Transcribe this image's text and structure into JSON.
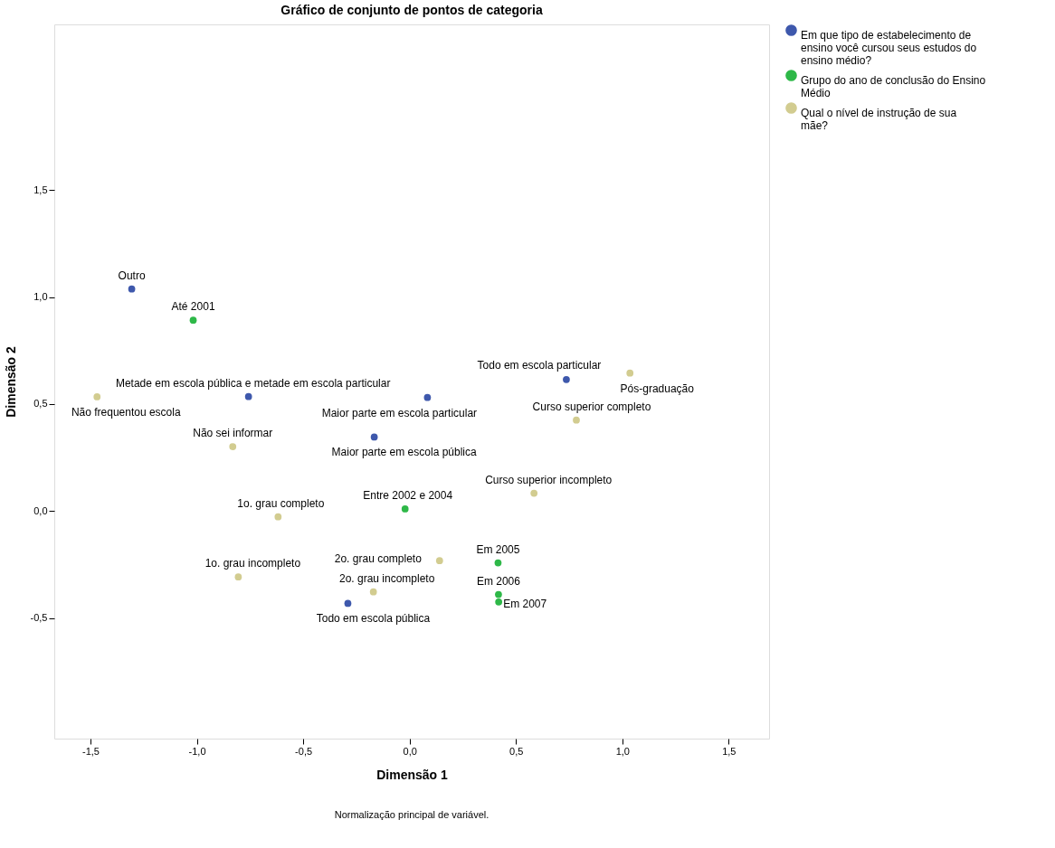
{
  "chart_data": {
    "type": "scatter",
    "title": "Gráfico de conjunto de pontos de categoria",
    "xlabel": "Dimensão 1",
    "ylabel": "Dimensão 2",
    "xlim": [
      -1.67,
      1.69
    ],
    "ylim": [
      -1.064,
      2.275
    ],
    "xticks": [
      {
        "value": -1.5,
        "label": "-1,5"
      },
      {
        "value": -1.0,
        "label": "-1,0"
      },
      {
        "value": -0.5,
        "label": "-0,5"
      },
      {
        "value": 0.0,
        "label": "0,0"
      },
      {
        "value": 0.5,
        "label": "0,5"
      },
      {
        "value": 1.0,
        "label": "1,0"
      },
      {
        "value": 1.5,
        "label": "1,5"
      }
    ],
    "yticks": [
      {
        "value": -0.5,
        "label": "-0,5"
      },
      {
        "value": 0.0,
        "label": "0,0"
      },
      {
        "value": 0.5,
        "label": "0,5"
      },
      {
        "value": 1.0,
        "label": "1,0"
      },
      {
        "value": 1.5,
        "label": "1,5"
      }
    ],
    "grid": false,
    "legend": "right",
    "marker": "circle",
    "series": [
      {
        "name": "Em que tipo de estabelecimento de ensino você cursou seus estudos do ensino médio?",
        "color": "#3e58ac",
        "x": [
          -1.306,
          -0.757,
          0.084,
          -0.166,
          0.737,
          -0.29
        ],
        "values": [
          1.038,
          0.535,
          0.531,
          0.346,
          0.615,
          -0.432
        ]
      },
      {
        "name": "Grupo do ano de conclusão do Ensino Médio",
        "color": "#2eb848",
        "x": [
          -1.017,
          -0.021,
          0.416,
          0.418,
          0.419
        ],
        "values": [
          0.892,
          0.01,
          -0.242,
          -0.39,
          -0.425
        ]
      },
      {
        "name": "Qual o nível de instrução de sua mãe?",
        "color": "#d2cc90",
        "x": [
          -1.469,
          -0.831,
          1.036,
          0.784,
          0.585,
          0.141,
          -0.17,
          -0.618,
          -0.805
        ],
        "values": [
          0.534,
          0.301,
          0.645,
          0.425,
          0.083,
          -0.232,
          -0.378,
          -0.027,
          -0.308
        ]
      }
    ],
    "annotations": [
      {
        "text": "Outro",
        "x": -1.306,
        "y": 1.038
      },
      {
        "text": "Metade em escola pública e metade em escola particular",
        "x": -0.757,
        "y": 0.535
      },
      {
        "text": "Maior parte em escola particular",
        "x": 0.084,
        "y": 0.531
      },
      {
        "text": "Maior parte em escola pública",
        "x": -0.166,
        "y": 0.346
      },
      {
        "text": "Todo em escola particular",
        "x": 0.737,
        "y": 0.615
      },
      {
        "text": "Todo em escola pública",
        "x": -0.29,
        "y": -0.432
      },
      {
        "text": "Até 2001",
        "x": -1.017,
        "y": 0.892
      },
      {
        "text": "Entre 2002 e 2004",
        "x": -0.021,
        "y": 0.01
      },
      {
        "text": "Em 2005",
        "x": 0.416,
        "y": -0.242
      },
      {
        "text": "Em 2006",
        "x": 0.418,
        "y": -0.39
      },
      {
        "text": "Em 2007",
        "x": 0.419,
        "y": -0.425
      },
      {
        "text": "Não frequentou escola",
        "x": -1.469,
        "y": 0.534
      },
      {
        "text": "Não sei informar",
        "x": -0.831,
        "y": 0.301
      },
      {
        "text": "Pós-graduação",
        "x": 1.036,
        "y": 0.645
      },
      {
        "text": "Curso superior completo",
        "x": 0.784,
        "y": 0.425
      },
      {
        "text": "Curso superior incompleto",
        "x": 0.585,
        "y": 0.083
      },
      {
        "text": "2o. grau completo",
        "x": 0.141,
        "y": -0.232
      },
      {
        "text": "2o. grau incompleto",
        "x": -0.17,
        "y": -0.378
      },
      {
        "text": "1o. grau completo",
        "x": -0.618,
        "y": -0.027
      },
      {
        "text": "1o. grau incompleto",
        "x": -0.805,
        "y": -0.308
      },
      "Normalização principal de variável."
    ]
  }
}
